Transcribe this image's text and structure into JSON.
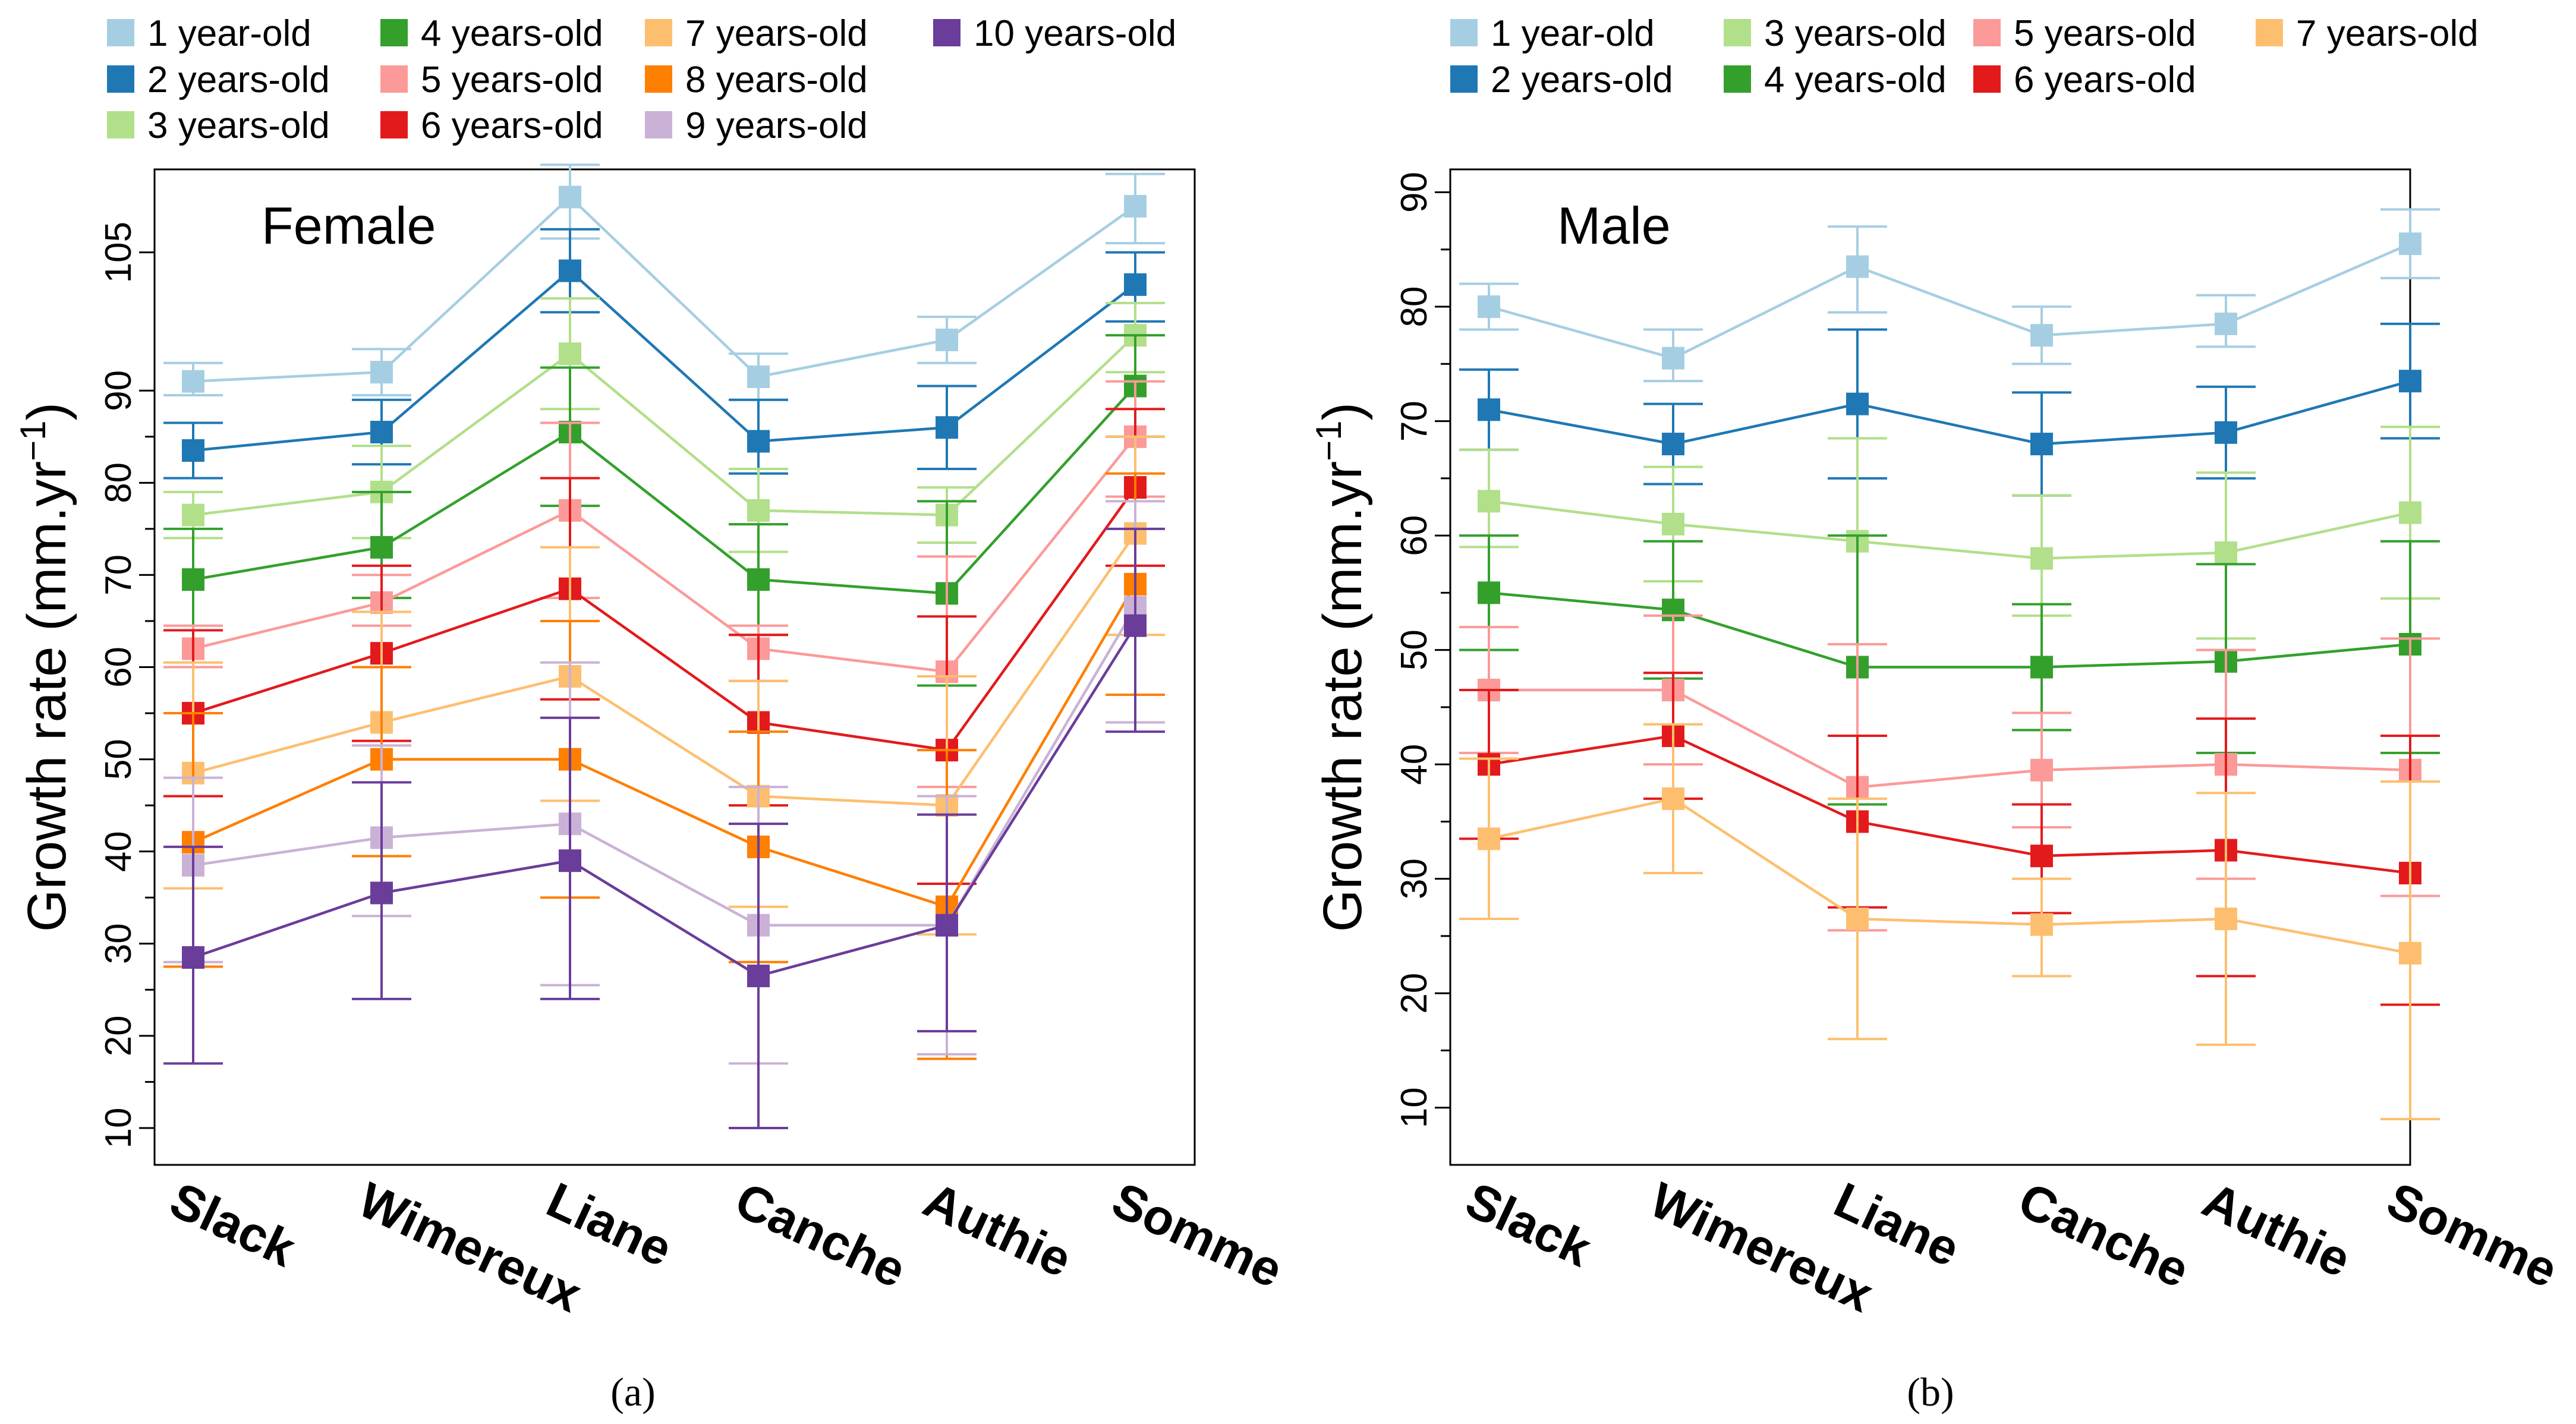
{
  "chart_data": [
    {
      "type": "line",
      "title": "Female",
      "ylabel": "Growth rate (mm.yr−1)",
      "caption": "(a)",
      "categories": [
        "Slack",
        "Wimereux",
        "Liane",
        "Canche",
        "Authie",
        "Somme"
      ],
      "yticks": [
        10,
        20,
        30,
        40,
        50,
        60,
        70,
        80,
        90,
        105
      ],
      "ylim": [
        6,
        114
      ],
      "legend_position": "top",
      "series": [
        {
          "name": "1 year-old",
          "color": "#a6cee3",
          "values": [
            91.0,
            92.0,
            111.0,
            91.5,
            95.5,
            110.0
          ],
          "err_lo": [
            89.5,
            89.5,
            106.5,
            89.0,
            93.0,
            106.0
          ],
          "err_hi": [
            93.0,
            94.5,
            114.5,
            94.0,
            98.0,
            113.5
          ]
        },
        {
          "name": "2 years-old",
          "color": "#1f78b4",
          "values": [
            83.5,
            85.5,
            103.0,
            84.5,
            86.0,
            101.5
          ],
          "err_lo": [
            80.5,
            82.0,
            98.5,
            81.0,
            81.5,
            97.5
          ],
          "err_hi": [
            86.5,
            89.0,
            107.5,
            89.0,
            90.5,
            105.0
          ]
        },
        {
          "name": "3 years-old",
          "color": "#b2df8a",
          "values": [
            76.5,
            79.0,
            94.0,
            77.0,
            76.5,
            96.0
          ],
          "err_lo": [
            74.0,
            74.0,
            88.0,
            72.5,
            73.5,
            92.0
          ],
          "err_hi": [
            79.0,
            84.0,
            100.0,
            81.5,
            79.5,
            99.5
          ]
        },
        {
          "name": "4 years-old",
          "color": "#33a02c",
          "values": [
            69.5,
            73.0,
            85.5,
            69.5,
            68.0,
            90.5
          ],
          "err_lo": [
            64.0,
            67.5,
            77.5,
            63.5,
            58.0,
            85.0
          ],
          "err_hi": [
            75.0,
            79.0,
            92.5,
            75.5,
            78.0,
            96.0
          ]
        },
        {
          "name": "5 years-old",
          "color": "#fb9a99",
          "values": [
            62.0,
            67.0,
            77.0,
            62.0,
            59.5,
            85.0
          ],
          "err_lo": [
            60.0,
            64.5,
            67.5,
            58.5,
            47.0,
            78.5
          ],
          "err_hi": [
            64.5,
            70.0,
            86.5,
            64.5,
            72.0,
            91.0
          ]
        },
        {
          "name": "6 years-old",
          "color": "#e31a1c",
          "values": [
            55.0,
            61.5,
            68.5,
            54.0,
            51.0,
            79.5
          ],
          "err_lo": [
            46.0,
            52.0,
            56.5,
            45.0,
            36.5,
            71.0
          ],
          "err_hi": [
            64.0,
            71.0,
            80.5,
            63.5,
            65.5,
            88.0
          ]
        },
        {
          "name": "7 years-old",
          "color": "#fdbf6f",
          "values": [
            48.5,
            54.0,
            59.0,
            46.0,
            45.0,
            74.5
          ],
          "err_lo": [
            36.0,
            39.5,
            45.5,
            34.0,
            31.0,
            63.5
          ],
          "err_hi": [
            60.5,
            66.0,
            73.0,
            58.5,
            59.0,
            85.0
          ]
        },
        {
          "name": "8 years-old",
          "color": "#ff7f00",
          "values": [
            41.0,
            50.0,
            50.0,
            40.5,
            34.0,
            69.0
          ],
          "err_lo": [
            27.5,
            39.5,
            35.0,
            28.0,
            17.5,
            57.0
          ],
          "err_hi": [
            55.0,
            60.0,
            65.0,
            53.0,
            51.0,
            81.0
          ]
        },
        {
          "name": "9 years-old",
          "color": "#cab2d6",
          "values": [
            38.5,
            41.5,
            43.0,
            32.0,
            32.0,
            66.5
          ],
          "err_lo": [
            28.0,
            33.0,
            25.5,
            17.0,
            18.0,
            54.0
          ],
          "err_hi": [
            48.0,
            51.5,
            60.5,
            47.0,
            46.0,
            78.0
          ]
        },
        {
          "name": "10 years-old",
          "color": "#6a3d9a",
          "values": [
            28.5,
            35.5,
            39.0,
            26.5,
            32.0,
            64.5
          ],
          "err_lo": [
            17.0,
            24.0,
            24.0,
            10.0,
            20.5,
            53.0
          ],
          "err_hi": [
            40.5,
            47.5,
            54.5,
            43.0,
            44.0,
            75.0
          ]
        }
      ]
    },
    {
      "type": "line",
      "title": "Male",
      "ylabel": "Growth rate (mm.yr−1)",
      "caption": "(b)",
      "categories": [
        "Slack",
        "Wimereux",
        "Liane",
        "Canche",
        "Authie",
        "Somme"
      ],
      "yticks": [
        10,
        20,
        30,
        40,
        50,
        60,
        70,
        80,
        90
      ],
      "ylim": [
        5,
        92
      ],
      "legend_position": "top",
      "series": [
        {
          "name": "1 year-old",
          "color": "#a6cee3",
          "values": [
            80.0,
            75.5,
            83.5,
            77.5,
            78.5,
            85.5
          ],
          "err_lo": [
            78.0,
            73.5,
            79.5,
            75.0,
            76.5,
            82.5
          ],
          "err_hi": [
            82.0,
            78.0,
            87.0,
            80.0,
            81.0,
            88.5
          ]
        },
        {
          "name": "2 years-old",
          "color": "#1f78b4",
          "values": [
            71.0,
            68.0,
            71.5,
            68.0,
            69.0,
            73.5
          ],
          "err_lo": [
            67.5,
            64.5,
            65.0,
            63.5,
            65.0,
            68.5
          ],
          "err_hi": [
            74.5,
            71.5,
            78.0,
            72.5,
            73.0,
            78.5
          ]
        },
        {
          "name": "3 years-old",
          "color": "#b2df8a",
          "values": [
            63.0,
            61.0,
            59.5,
            58.0,
            58.5,
            62.0
          ],
          "err_lo": [
            59.0,
            56.0,
            50.5,
            53.0,
            51.0,
            54.5
          ],
          "err_hi": [
            67.5,
            66.0,
            68.5,
            63.5,
            65.5,
            69.5
          ]
        },
        {
          "name": "4 years-old",
          "color": "#33a02c",
          "values": [
            55.0,
            53.5,
            48.5,
            48.5,
            49.0,
            50.5
          ],
          "err_lo": [
            50.0,
            47.5,
            36.5,
            43.0,
            41.0,
            41.0
          ],
          "err_hi": [
            60.0,
            59.5,
            60.0,
            54.0,
            57.5,
            59.5
          ]
        },
        {
          "name": "5 years-old",
          "color": "#fb9a99",
          "values": [
            46.5,
            46.5,
            38.0,
            39.5,
            40.0,
            39.5
          ],
          "err_lo": [
            41.0,
            40.0,
            25.5,
            34.5,
            30.0,
            28.5
          ],
          "err_hi": [
            52.0,
            53.0,
            50.5,
            44.5,
            50.0,
            51.0
          ]
        },
        {
          "name": "6 years-old",
          "color": "#e31a1c",
          "values": [
            40.0,
            42.5,
            35.0,
            32.0,
            32.5,
            30.5
          ],
          "err_lo": [
            33.5,
            37.0,
            27.5,
            27.0,
            21.5,
            19.0
          ],
          "err_hi": [
            46.5,
            48.0,
            42.5,
            36.5,
            44.0,
            42.5
          ]
        },
        {
          "name": "7 years-old",
          "color": "#fdbf6f",
          "values": [
            33.5,
            37.0,
            26.5,
            26.0,
            26.5,
            23.5
          ],
          "err_lo": [
            26.5,
            30.5,
            16.0,
            21.5,
            15.5,
            9.0
          ],
          "err_hi": [
            40.5,
            43.5,
            37.0,
            30.0,
            37.5,
            38.5
          ]
        }
      ]
    }
  ]
}
